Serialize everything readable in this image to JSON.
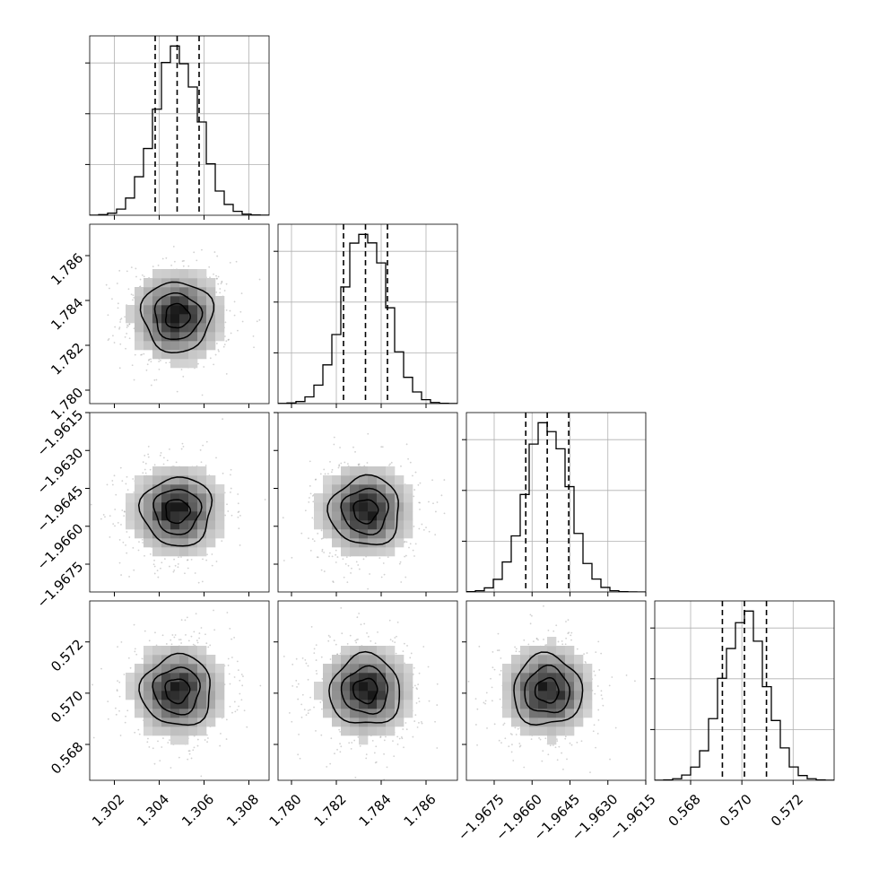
{
  "chart_data": {
    "type": "corner",
    "parameters": [
      {
        "range": [
          1.3009,
          1.3089
        ],
        "ticks": [
          1.302,
          1.304,
          1.306,
          1.308
        ],
        "tick_labels": [
          "1.302",
          "1.304",
          "1.306",
          "1.308"
        ],
        "mean": 1.3048,
        "sigma": 0.00098,
        "quantiles": [
          1.30382,
          1.3048,
          1.30578
        ]
      },
      {
        "range": [
          1.7794,
          1.7874
        ],
        "ticks": [
          1.78,
          1.782,
          1.784,
          1.786
        ],
        "tick_labels": [
          "1.780",
          "1.782",
          "1.784",
          "1.786"
        ],
        "mean": 1.7833,
        "sigma": 0.00098,
        "quantiles": [
          1.78232,
          1.7833,
          1.78428
        ]
      },
      {
        "range": [
          -1.9686,
          -1.9615
        ],
        "ticks": [
          -1.9675,
          -1.966,
          -1.9645,
          -1.963,
          -1.9615
        ],
        "tick_labels": [
          "−1.9675",
          "−1.9660",
          "−1.9645",
          "−1.9630",
          "−1.9615"
        ],
        "mean": -1.9654,
        "sigma": 0.00085,
        "quantiles": [
          -1.96625,
          -1.9654,
          -1.96455
        ]
      },
      {
        "range": [
          0.5666,
          0.5736
        ],
        "ticks": [
          0.568,
          0.57,
          0.572
        ],
        "tick_labels": [
          "0.568",
          "0.570",
          "0.572"
        ],
        "mean": 0.5701,
        "sigma": 0.00086,
        "quantiles": [
          0.56924,
          0.5701,
          0.57096
        ]
      }
    ],
    "histogram_style": "step",
    "quantile_lines": "dashed",
    "contour_levels": 3,
    "grid": true
  }
}
